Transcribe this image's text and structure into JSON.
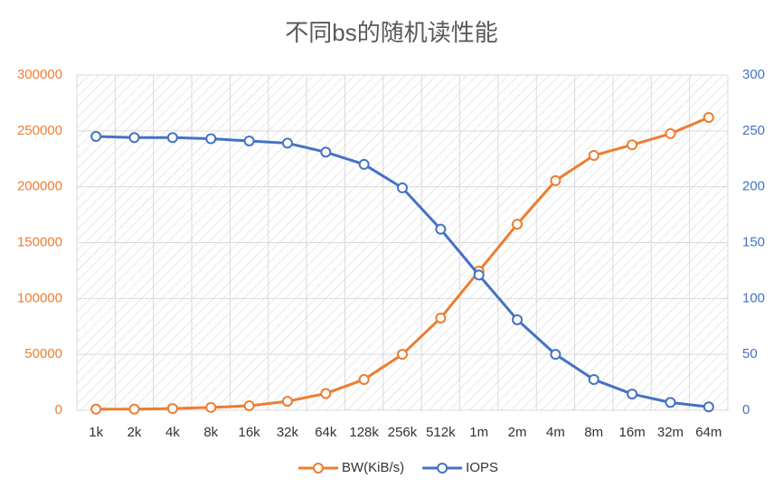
{
  "chart_data": {
    "type": "line",
    "title": "不同bs的随机读性能",
    "categories": [
      "1k",
      "2k",
      "4k",
      "8k",
      "16k",
      "32k",
      "64k",
      "128k",
      "256k",
      "512k",
      "1m",
      "2m",
      "4m",
      "8m",
      "16m",
      "32m",
      "64m"
    ],
    "series": [
      {
        "name": "BW(KiB/s)",
        "color": "#ed7d31",
        "axis": "y",
        "values": [
          1000,
          1000,
          1500,
          2500,
          4000,
          8000,
          15000,
          27500,
          50000,
          82500,
          124500,
          166500,
          205500,
          228000,
          237500,
          247500,
          262000
        ]
      },
      {
        "name": "IOPS",
        "color": "#4472c4",
        "axis": "y2",
        "values": [
          245,
          244,
          244,
          243,
          241,
          239,
          231,
          220,
          199,
          162,
          121,
          81,
          50,
          27.5,
          14.5,
          7,
          3
        ]
      }
    ],
    "ylim": [
      0,
      300000
    ],
    "yticks": [
      0,
      50000,
      100000,
      150000,
      200000,
      250000,
      300000
    ],
    "y2lim": [
      0,
      300
    ],
    "y2ticks": [
      0,
      50,
      100,
      150,
      200,
      250,
      300
    ],
    "grid": true,
    "legend": "bottom"
  }
}
